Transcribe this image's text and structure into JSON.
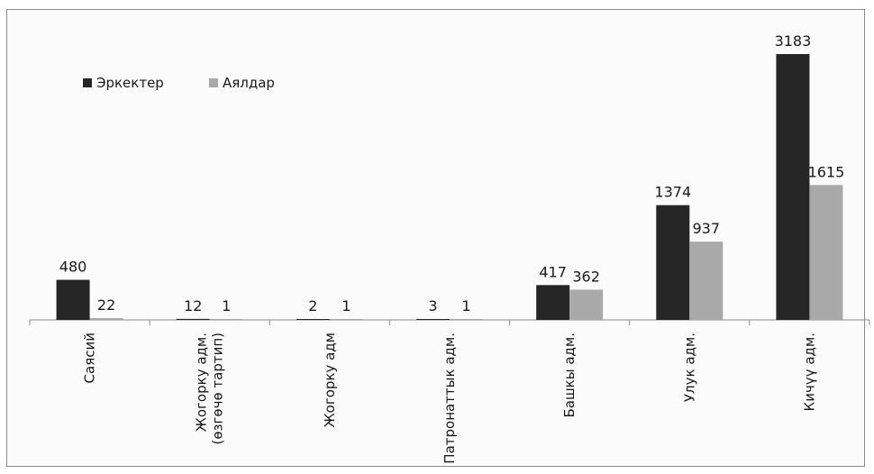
{
  "chart_data": {
    "type": "bar",
    "categories": [
      [
        "Саясий"
      ],
      [
        "Жогорку адм.",
        "(өзгөчө тартип)"
      ],
      [
        "Жогорку адм"
      ],
      [
        "Патронаттык адм."
      ],
      [
        "Башкы адм."
      ],
      [
        "Улук адм."
      ],
      [
        "Кичүү адм."
      ]
    ],
    "series": [
      {
        "name": "Эркектер",
        "color": "#262626",
        "values": [
          480,
          12,
          2,
          3,
          417,
          1374,
          3183
        ]
      },
      {
        "name": "Аялдар",
        "color": "#a9a9a9",
        "values": [
          22,
          1,
          1,
          1,
          362,
          937,
          1615
        ]
      }
    ],
    "value_labels": {
      "Эркектер": [
        "480",
        "12",
        "2",
        "3",
        "417",
        "1374",
        "3183"
      ],
      "Аялдар": [
        "22",
        "1",
        "1",
        "1",
        "362",
        "937",
        "1615"
      ]
    },
    "ylim": [
      0,
      3183
    ],
    "grid": false,
    "legend": "top-left",
    "title": "",
    "xlabel": "",
    "ylabel": ""
  }
}
